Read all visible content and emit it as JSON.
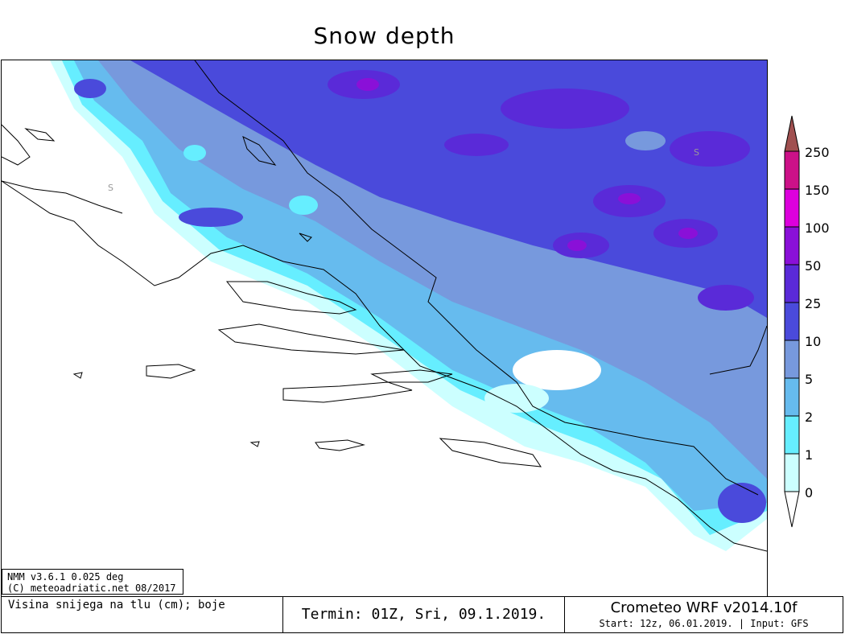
{
  "title": "Snow depth",
  "info": {
    "line1": "NMM v3.6.1 0.025 deg",
    "line2": "(C) meteoadriatic.net 08/2017"
  },
  "footer": {
    "left": "Visina snijega na tlu (cm); boje",
    "center": "Termin: 01Z, Sri, 09.1.2019.",
    "model": "Crometeo WRF v2014.10f",
    "start": "Start: 12z, 06.01.2019. | Input: GFS"
  },
  "legend": {
    "levels": [
      "0",
      "1",
      "2",
      "5",
      "10",
      "25",
      "50",
      "100",
      "150",
      "250"
    ],
    "colors": [
      "#ffffff",
      "#ccffff",
      "#66eeff",
      "#66bbee",
      "#7799dd",
      "#4a4adb",
      "#5a2ad8",
      "#8a10d8",
      "#dd00dd",
      "#cc1188",
      "#a05050"
    ]
  },
  "map_marks": [
    "S",
    "S"
  ]
}
